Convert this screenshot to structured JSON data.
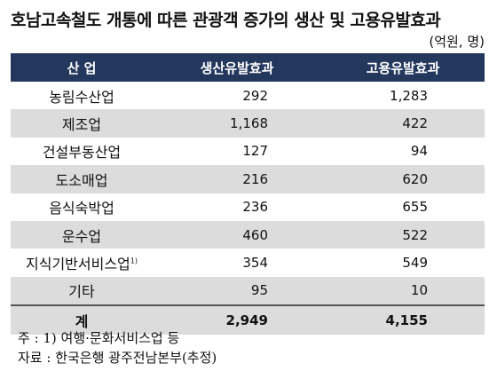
{
  "title": "호남고속철도 개통에 따른 관광객 증가의 생산 및 고용유발효과",
  "unit": "(억원,  명)",
  "table": {
    "headers": [
      "산 업",
      "생산유발효과",
      "고용유발효과"
    ],
    "rows": [
      {
        "name": "농림수산업",
        "sup": "",
        "production": "292",
        "employment": "1,283"
      },
      {
        "name": "제조업",
        "sup": "",
        "production": "1,168",
        "employment": "422"
      },
      {
        "name": "건설부동산업",
        "sup": "",
        "production": "127",
        "employment": "94"
      },
      {
        "name": "도소매업",
        "sup": "",
        "production": "216",
        "employment": "620"
      },
      {
        "name": "음식숙박업",
        "sup": "",
        "production": "236",
        "employment": "655"
      },
      {
        "name": "운수업",
        "sup": "",
        "production": "460",
        "employment": "522"
      },
      {
        "name": "지식기반서비스업",
        "sup": "1)",
        "production": "354",
        "employment": "549"
      },
      {
        "name": "기타",
        "sup": "",
        "production": "95",
        "employment": "10"
      }
    ],
    "total": {
      "name": "계",
      "production": "2,949",
      "employment": "4,155"
    }
  },
  "notes": [
    "주 : 1) 여행·문화서비스업 등",
    "자료 : 한국은행 광주전남본부(추정)"
  ]
}
